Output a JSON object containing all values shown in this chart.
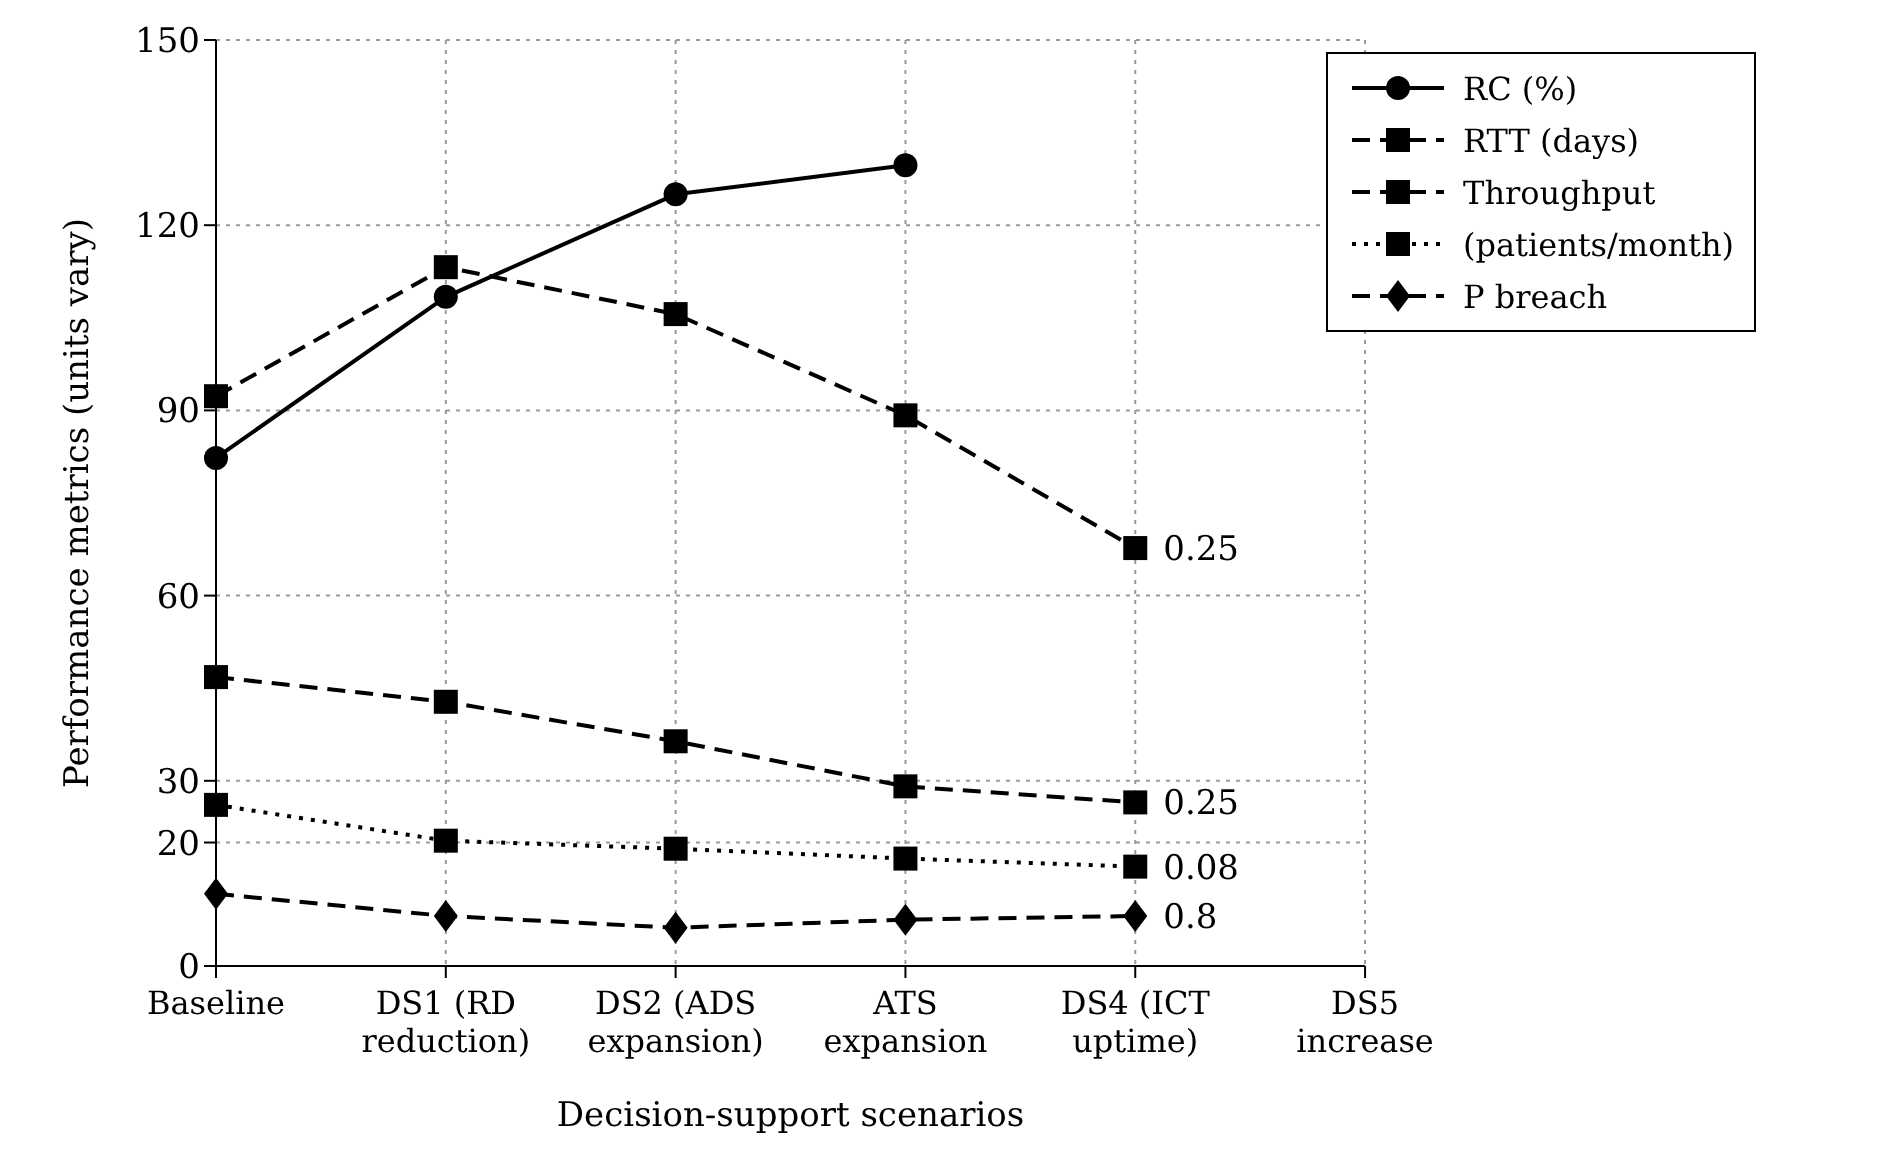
{
  "chart_data": {
    "type": "line",
    "xlabel": "Decision-support scenarios",
    "ylabel": "Performance metrics (units vary)",
    "categories": [
      "Baseline",
      "DS1 (RD reduction)",
      "DS2 (ADS expansion)",
      "ATS expansion",
      "DS4 (ICT uptime)",
      "DS5 increase"
    ],
    "ylim": [
      0,
      150
    ],
    "yticks": [
      0,
      20,
      30,
      60,
      90,
      120,
      150
    ],
    "grid": true,
    "legend": "top right",
    "series": [
      {
        "name": "RC (%)",
        "color": "#000000",
        "line_style": "solid",
        "marker": "circle",
        "values": [
          82.3,
          108.4,
          125,
          129.7,
          null,
          null
        ]
      },
      {
        "name": "RTT (days)",
        "color": "#000000",
        "line_style": "dashed",
        "marker": "square",
        "values": [
          92.3,
          113.2,
          105.6,
          89.2,
          67.7,
          null
        ]
      },
      {
        "name": "Throughput",
        "color": "#000000",
        "line_style": "dashed",
        "marker": "square",
        "values": [
          46.8,
          42.8,
          36.4,
          29.1,
          26.5,
          null
        ]
      },
      {
        "name": "(patients/month)",
        "color": "#000000",
        "line_style": "dotted",
        "marker": "square",
        "values": [
          26.1,
          20.3,
          19.0,
          17.4,
          16.1,
          null
        ]
      },
      {
        "name": "P breach",
        "color": "#000000",
        "line_style": "dashed",
        "marker": "diamond",
        "values": [
          11.7,
          8.1,
          6.2,
          7.5,
          8.1,
          null
        ]
      }
    ],
    "annotations": [
      {
        "text": "0.25",
        "x": "DS4 (ICT uptime)",
        "y": 67.7
      },
      {
        "text": "0.25",
        "x": "DS4 (ICT uptime)",
        "y": 26.5
      },
      {
        "text": "0.08",
        "x": "DS4 (ICT uptime)",
        "y": 16.1
      },
      {
        "text": "0.8",
        "x": "DS4 (ICT uptime)",
        "y": 8.1
      }
    ]
  }
}
